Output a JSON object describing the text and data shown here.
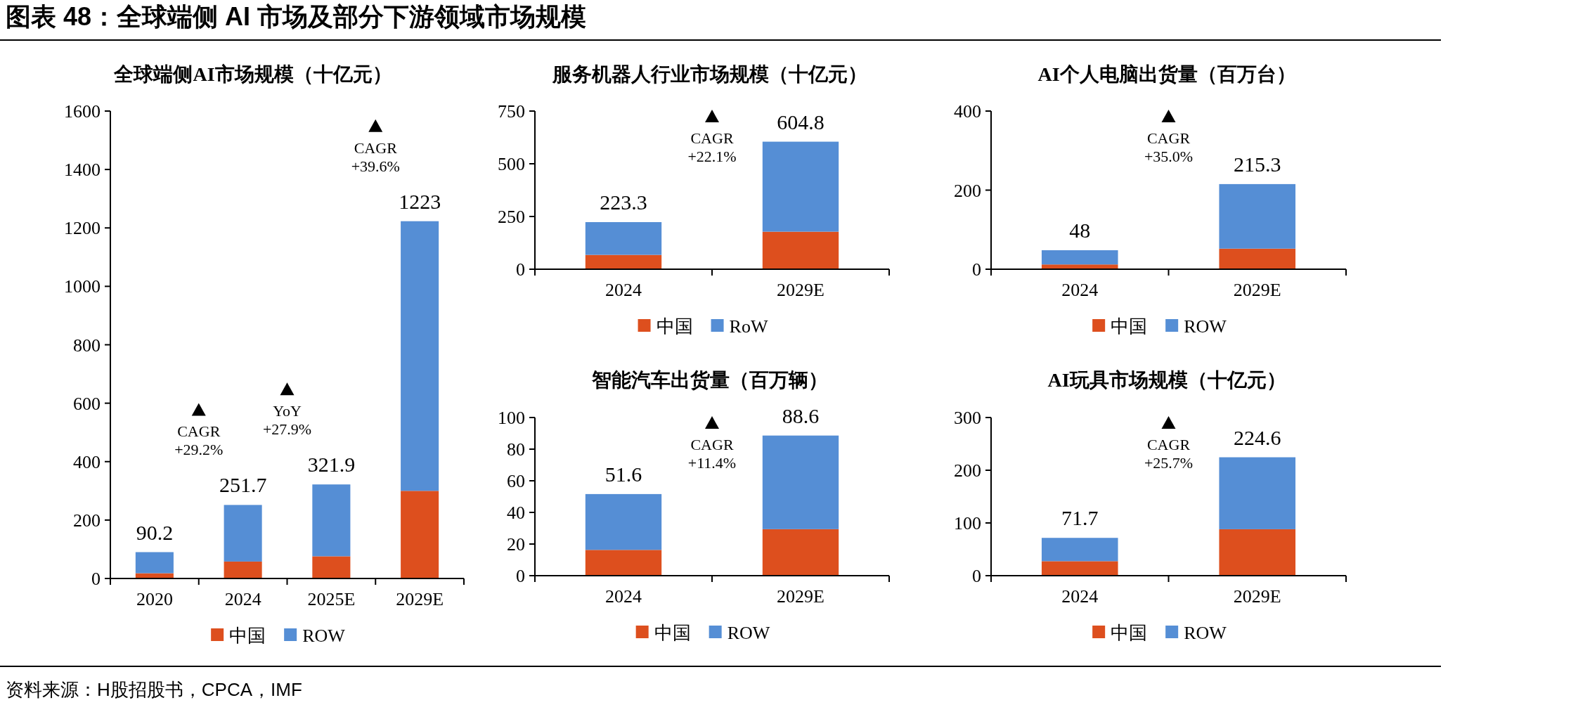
{
  "chart_data": [
    {
      "type": "bar",
      "stacked": true,
      "title": "全球端侧AI市场规模（十亿元）",
      "categories": [
        "2020",
        "2024",
        "2025E",
        "2029E"
      ],
      "series": [
        {
          "name": "中国",
          "color": "#dd4f1e",
          "values": [
            18,
            58,
            76,
            300
          ]
        },
        {
          "name": "ROW",
          "color": "#558ed5",
          "values": [
            72.2,
            193.7,
            245.9,
            923
          ]
        }
      ],
      "totals": [
        "90.2",
        "251.7",
        "321.9",
        "1223"
      ],
      "ylim": [
        0,
        1600
      ],
      "yticks": [
        0,
        200,
        400,
        600,
        800,
        1000,
        1200,
        1400,
        1600
      ],
      "legend": "bottom",
      "annotations": [
        "图表 48：全球端侧 AI 市场及部分下游领域市场规模",
        "CAGR +29.2%",
        "YoY +27.9%",
        "CAGR +39.6%",
        "资料来源：H股招股书，CPCA，IMF"
      ]
    },
    {
      "type": "bar",
      "stacked": true,
      "title": "服务机器人行业市场规模（十亿元）",
      "categories": [
        "2024",
        "2029E"
      ],
      "series": [
        {
          "name": "中国",
          "color": "#dd4f1e",
          "values": [
            68,
            178
          ]
        },
        {
          "name": "RoW",
          "color": "#558ed5",
          "values": [
            155.3,
            426.8
          ]
        }
      ],
      "totals": [
        "223.3",
        "604.8"
      ],
      "ylim": [
        0,
        750
      ],
      "yticks": [
        0,
        250,
        500,
        750
      ],
      "legend": "bottom",
      "annotations": [
        "CAGR +22.1%"
      ]
    },
    {
      "type": "bar",
      "stacked": true,
      "title": "AI个人电脑出货量（百万台）",
      "categories": [
        "2024",
        "2029E"
      ],
      "series": [
        {
          "name": "中国",
          "color": "#dd4f1e",
          "values": [
            12,
            52
          ]
        },
        {
          "name": "ROW",
          "color": "#558ed5",
          "values": [
            36,
            163.3
          ]
        }
      ],
      "totals": [
        "48",
        "215.3"
      ],
      "ylim": [
        0,
        400
      ],
      "yticks": [
        0,
        200,
        400
      ],
      "legend": "bottom",
      "annotations": [
        "CAGR +35.0%"
      ]
    },
    {
      "type": "bar",
      "stacked": true,
      "title": "智能汽车出货量（百万辆）",
      "categories": [
        "2024",
        "2029E"
      ],
      "series": [
        {
          "name": "中国",
          "color": "#dd4f1e",
          "values": [
            16.3,
            29.4
          ]
        },
        {
          "name": "ROW",
          "color": "#558ed5",
          "values": [
            35.3,
            59.2
          ]
        }
      ],
      "totals": [
        "51.6",
        "88.6"
      ],
      "ylim": [
        0,
        100
      ],
      "yticks": [
        0,
        20,
        40,
        60,
        80,
        100
      ],
      "legend": "bottom",
      "annotations": [
        "CAGR +11.4%"
      ]
    },
    {
      "type": "bar",
      "stacked": true,
      "title": "AI玩具市场规模（十亿元）",
      "categories": [
        "2024",
        "2029E"
      ],
      "series": [
        {
          "name": "中国",
          "color": "#dd4f1e",
          "values": [
            27.5,
            88.1
          ]
        },
        {
          "name": "ROW",
          "color": "#558ed5",
          "values": [
            44.2,
            136.5
          ]
        }
      ],
      "totals": [
        "71.7",
        "224.6"
      ],
      "ylim": [
        0,
        300
      ],
      "yticks": [
        0,
        100,
        200,
        300
      ],
      "legend": "bottom",
      "annotations": [
        "CAGR +25.7%"
      ]
    }
  ]
}
